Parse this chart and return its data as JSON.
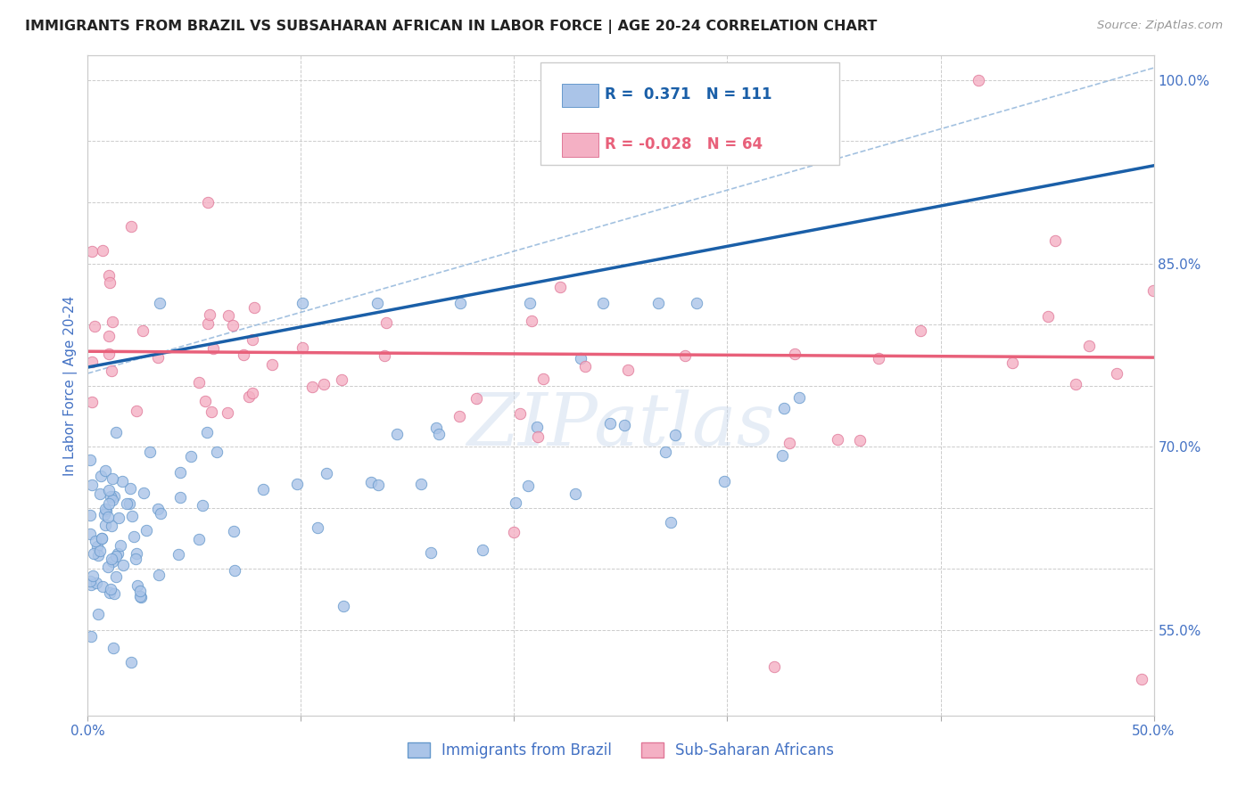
{
  "title": "IMMIGRANTS FROM BRAZIL VS SUBSAHARAN AFRICAN IN LABOR FORCE | AGE 20-24 CORRELATION CHART",
  "source": "Source: ZipAtlas.com",
  "ylabel": "In Labor Force | Age 20-24",
  "xlim": [
    0.0,
    0.5
  ],
  "ylim": [
    0.48,
    1.02
  ],
  "brazil_color": "#aac4e8",
  "brazil_edge_color": "#6699cc",
  "africa_color": "#f4b0c4",
  "africa_edge_color": "#e07898",
  "brazil_trend_color": "#1a5fa8",
  "africa_trend_color": "#e8607a",
  "diagonal_color": "#99bbdd",
  "tick_label_color": "#4472c4",
  "title_color": "#222222",
  "grid_color": "#cccccc",
  "background_color": "#ffffff",
  "watermark": "ZIPatlas",
  "marker_size": 80,
  "brazil_R": 0.371,
  "brazil_N": 111,
  "africa_R": -0.028,
  "africa_N": 64
}
